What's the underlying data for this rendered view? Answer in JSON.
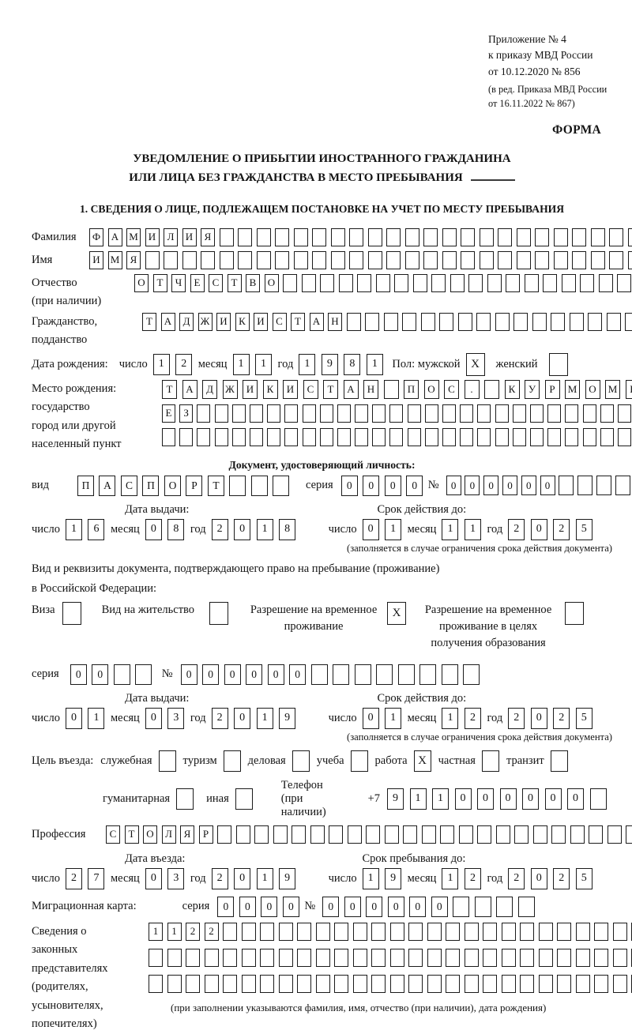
{
  "labels": {
    "day": "число",
    "month": "месяц",
    "year": "год",
    "series": "серия",
    "number": "№",
    "issue_date": "Дата выдачи:",
    "valid_until": "Срок действия до:",
    "entry_date": "Дата въезда:",
    "stay_until": "Срок пребывания до:",
    "limit_note": "(заполняется в случае ограничения срока действия документа)"
  },
  "header": {
    "lines": [
      "Приложение № 4",
      "к приказу МВД России",
      "от 10.12.2020 № 856"
    ],
    "sub_lines": [
      "(в ред. Приказа МВД России",
      "от 16.11.2022 № 867)"
    ],
    "forma": "ФОРМА"
  },
  "title": {
    "line1": "УВЕДОМЛЕНИЕ О ПРИБЫТИИ ИНОСТРАННОГО ГРАЖДАНИНА",
    "line2": "ИЛИ ЛИЦА БЕЗ ГРАЖДАНСТВА В МЕСТО ПРЕБЫВАНИЯ"
  },
  "section1": {
    "title": "1. СВЕДЕНИЯ О ЛИЦЕ, ПОДЛЕЖАЩЕМ ПОСТАНОВКЕ НА УЧЕТ ПО МЕСТУ ПРЕБЫВАНИЯ"
  },
  "person": {
    "surname": {
      "label": "Фамилия",
      "value": "ФАМИЛИЯ",
      "cells": 30
    },
    "name": {
      "label": "Имя",
      "value": "ИМЯ",
      "cells": 30
    },
    "patronymic": {
      "label": "Отчество",
      "label2": "(при наличии)",
      "value": "ОТЧЕСТВО",
      "cells": 28
    },
    "citizenship": {
      "label": "Гражданство,",
      "label2": "подданство",
      "value": "ТАДЖИКИСТАН",
      "cells": 27
    },
    "birth_date": {
      "label": "Дата рождения:",
      "day": {
        "value": "12",
        "cells": 2
      },
      "month": {
        "value": "11",
        "cells": 2
      },
      "year": {
        "value": "1981",
        "cells": 4
      }
    },
    "sex": {
      "label": "Пол: мужской",
      "male": "X",
      "female_label": "женский",
      "female": ""
    },
    "birth_place": {
      "label_lines": [
        "Место рождения:",
        "государство",
        "город или другой",
        "населенный пункт"
      ],
      "rows": [
        {
          "value": "ТАДЖИКИСТАН ПОС. КУРМОМБ",
          "cells": 24
        },
        {
          "value": "ЕЗ",
          "cells": 28
        },
        {
          "value": "",
          "cells": 28
        }
      ]
    }
  },
  "identity_doc": {
    "heading": "Документ, удостоверяющий личность:",
    "kind": {
      "label": "вид",
      "value": "ПАСПОРТ",
      "cells": 10
    },
    "series": {
      "value": "0000",
      "cells": 4
    },
    "number": {
      "value": "000000",
      "cells": 11
    },
    "issue": {
      "day": {
        "value": "16",
        "cells": 2
      },
      "month": {
        "value": "08",
        "cells": 2
      },
      "year": {
        "value": "2018",
        "cells": 4
      }
    },
    "valid": {
      "day": {
        "value": "01",
        "cells": 2
      },
      "month": {
        "value": "11",
        "cells": 2
      },
      "year": {
        "value": "2025",
        "cells": 4
      }
    }
  },
  "residence_doc": {
    "intro1": "Вид и реквизиты документа, подтверждающего право на пребывание (проживание)",
    "intro2": "в Российской Федерации:",
    "options": [
      {
        "label": "Виза",
        "checked": ""
      },
      {
        "label": "Вид на жительство",
        "checked": ""
      },
      {
        "label": "Разрешение на временное проживание",
        "checked": "X"
      },
      {
        "label": "Разрешение на временное проживание в целях получения образования",
        "checked": ""
      }
    ],
    "series": {
      "value": "00",
      "cells": 4
    },
    "number": {
      "value": "000000",
      "cells": 14
    },
    "issue": {
      "day": {
        "value": "01",
        "cells": 2
      },
      "month": {
        "value": "03",
        "cells": 2
      },
      "year": {
        "value": "2019",
        "cells": 4
      }
    },
    "valid": {
      "day": {
        "value": "01",
        "cells": 2
      },
      "month": {
        "value": "12",
        "cells": 2
      },
      "year": {
        "value": "2025",
        "cells": 4
      }
    }
  },
  "visit": {
    "purpose_label": "Цель въезда:",
    "purposes_row1": [
      {
        "label": "служебная",
        "checked": ""
      },
      {
        "label": "туризм",
        "checked": ""
      },
      {
        "label": "деловая",
        "checked": ""
      },
      {
        "label": "учеба",
        "checked": ""
      },
      {
        "label": "работа",
        "checked": "X"
      },
      {
        "label": "частная",
        "checked": ""
      },
      {
        "label": "транзит",
        "checked": ""
      }
    ],
    "purposes_row2": [
      {
        "label": "гуманитарная",
        "checked": ""
      },
      {
        "label": "иная",
        "checked": ""
      }
    ],
    "phone": {
      "label": "Телефон (при наличии)",
      "prefix": "+7",
      "value": "911000000",
      "cells": 10
    },
    "profession": {
      "label": "Профессия",
      "value": "СТОЛЯР",
      "cells": 30
    },
    "entry": {
      "day": {
        "value": "27",
        "cells": 2
      },
      "month": {
        "value": "03",
        "cells": 2
      },
      "year": {
        "value": "2019",
        "cells": 4
      }
    },
    "stay": {
      "day": {
        "value": "19",
        "cells": 2
      },
      "month": {
        "value": "12",
        "cells": 2
      },
      "year": {
        "value": "2025",
        "cells": 4
      }
    },
    "migration_card": {
      "label": "Миграционная карта:",
      "series": {
        "value": "0000",
        "cells": 4
      },
      "number": {
        "value": "000000",
        "cells": 10
      }
    }
  },
  "representatives": {
    "label_lines": [
      "Сведения о",
      "законных",
      "представителях",
      "(родителях,",
      "усыновителях,",
      "попечителях)"
    ],
    "rows": [
      {
        "value": "1122",
        "cells": 27
      },
      {
        "value": "",
        "cells": 27
      },
      {
        "value": "",
        "cells": 27
      }
    ],
    "note": "(при заполнении указываются фамилия, имя, отчество (при наличии), дата рождения)"
  }
}
